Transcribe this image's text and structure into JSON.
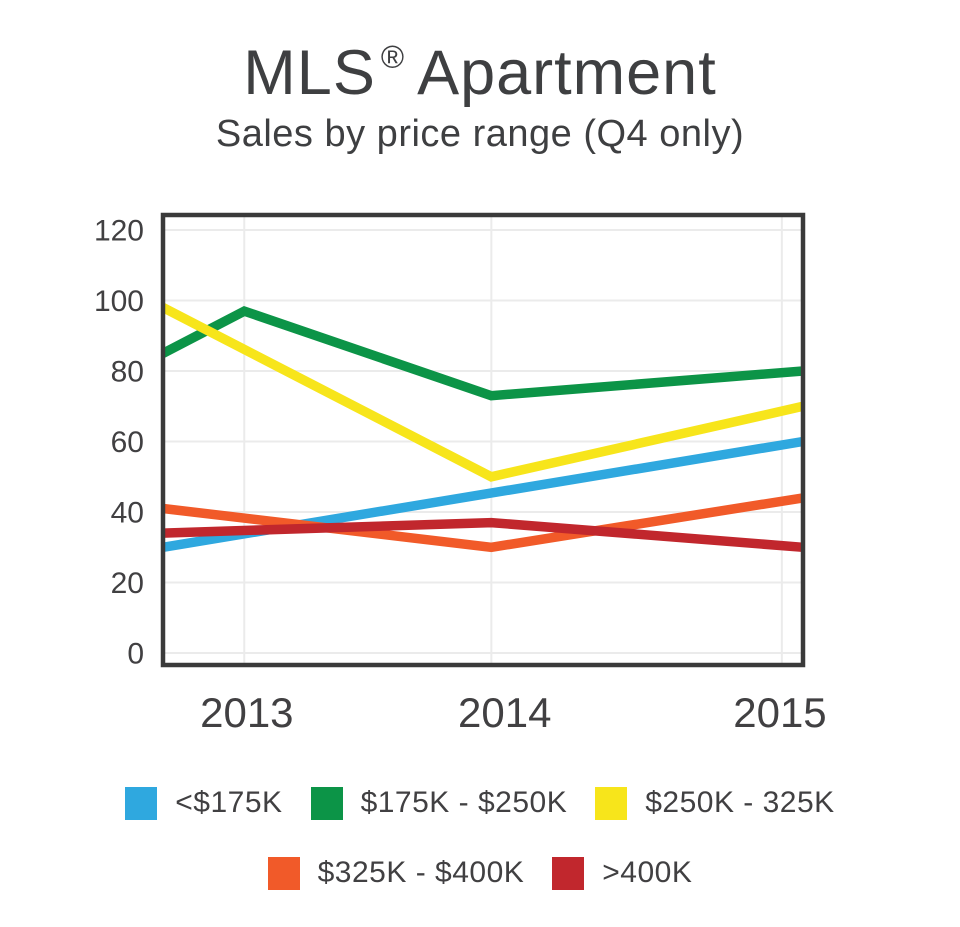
{
  "header": {
    "title_prefix": "MLS",
    "title_reg": "®",
    "title_suffix": "Apartment",
    "subtitle": "Sales by price range (Q4 only)"
  },
  "chart_data": {
    "type": "line",
    "title": "MLS® Apartment",
    "subtitle": "Sales by price range (Q4 only)",
    "x_categories": [
      "2013",
      "2014",
      "2015"
    ],
    "y_axis": {
      "min": 0,
      "max": 120,
      "tick_step": 20,
      "ticks": [
        0,
        20,
        40,
        60,
        80,
        100,
        120
      ]
    },
    "grid": true,
    "legend_position": "bottom",
    "legend_rows": [
      3,
      2
    ],
    "note": "x values are fractions of plot width; lines are drawn edge-to-edge of the plot. Year gridlines sit at x=0.127 (2013), 0.513 (2014), 0.967 (2015); series end at the right border (2015 values).",
    "x_gridlines": [
      {
        "label": "2013",
        "x": 0.127
      },
      {
        "label": "2014",
        "x": 0.513
      },
      {
        "label": "2015",
        "x": 0.967
      }
    ],
    "x_axis_labels": [
      {
        "label": "2013",
        "x": 0.131
      },
      {
        "label": "2014",
        "x": 0.534
      },
      {
        "label": "2015",
        "x": 0.964
      }
    ],
    "series": [
      {
        "name": "<$175K",
        "slug": "lt-175k",
        "color": "#2FA8DF",
        "points": [
          [
            0,
            30
          ],
          [
            1,
            60
          ]
        ]
      },
      {
        "name": "$175K - $250K",
        "slug": "175k-250k",
        "color": "#0C9447",
        "points": [
          [
            0,
            85
          ],
          [
            0.127,
            97
          ],
          [
            0.513,
            73
          ],
          [
            1,
            80
          ]
        ]
      },
      {
        "name": "$250K - 325K",
        "slug": "250k-325k",
        "color": "#F7E51B",
        "points": [
          [
            0,
            98
          ],
          [
            0.513,
            50
          ],
          [
            1,
            70
          ]
        ]
      },
      {
        "name": "$325K - $400K",
        "slug": "325k-400k",
        "color": "#F15A29",
        "points": [
          [
            0,
            41
          ],
          [
            0.513,
            30
          ],
          [
            1,
            44
          ]
        ]
      },
      {
        "name": ">400K",
        "slug": "gt-400k",
        "color": "#C1272D",
        "points": [
          [
            0,
            34
          ],
          [
            0.513,
            37
          ],
          [
            1,
            30
          ]
        ]
      }
    ],
    "colors": {
      "grid": "#EBEBEB",
      "border": "#3A3A3A",
      "text": "#414042"
    }
  }
}
